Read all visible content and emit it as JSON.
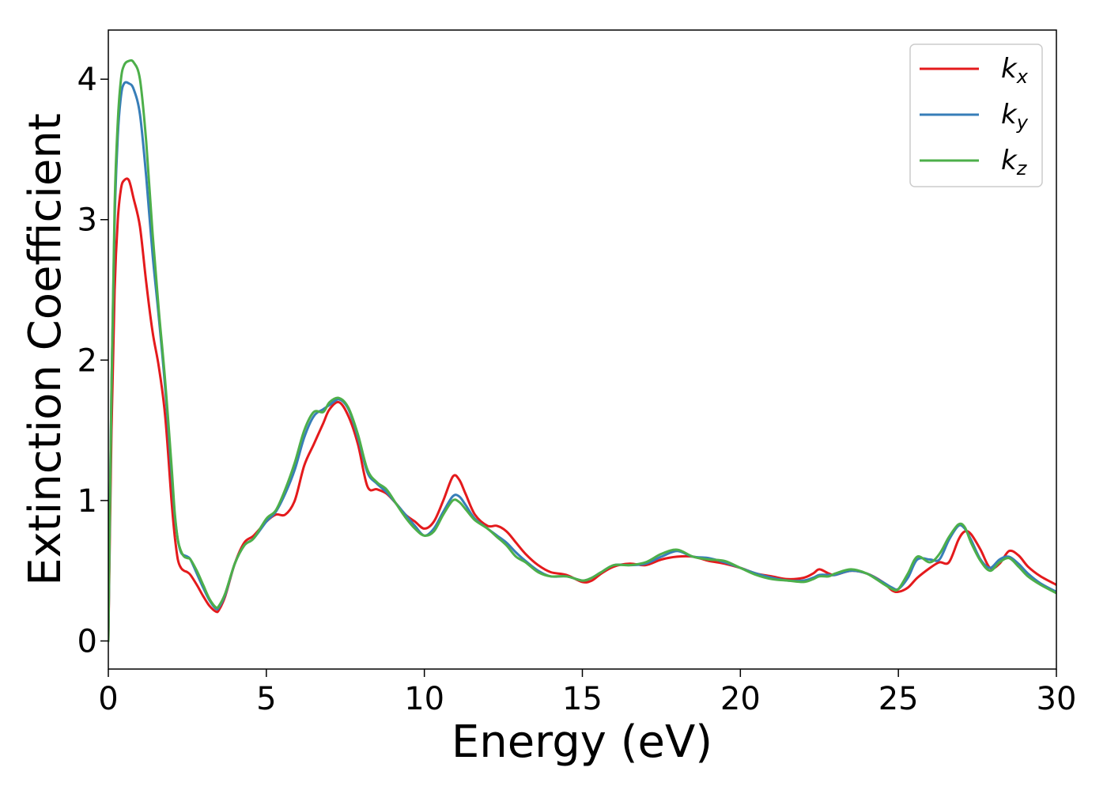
{
  "chart_data": {
    "type": "line",
    "title": "",
    "xlabel": "Energy (eV)",
    "ylabel": "Extinction Coefficient",
    "xlim": [
      0,
      30
    ],
    "ylim": [
      -0.2,
      4.35
    ],
    "xticks": [
      0,
      5,
      10,
      15,
      20,
      25,
      30
    ],
    "yticks": [
      0,
      1,
      2,
      3,
      4
    ],
    "xtick_labels": [
      "0",
      "5",
      "10",
      "15",
      "20",
      "25",
      "30"
    ],
    "ytick_labels": [
      "0",
      "1",
      "2",
      "3",
      "4"
    ],
    "grid": false,
    "legend_position": "top-right",
    "series": [
      {
        "name": "k",
        "subscript": "x",
        "color": "#e41a1c",
        "x": [
          0,
          0.1,
          0.2,
          0.3,
          0.4,
          0.5,
          0.65,
          0.8,
          1.0,
          1.2,
          1.4,
          1.6,
          1.8,
          2.0,
          2.1,
          2.2,
          2.3,
          2.4,
          2.5,
          2.6,
          2.8,
          3.0,
          3.2,
          3.4,
          3.5,
          3.7,
          4.0,
          4.3,
          4.6,
          5.0,
          5.3,
          5.6,
          5.9,
          6.2,
          6.5,
          6.8,
          7.0,
          7.3,
          7.6,
          7.9,
          8.2,
          8.5,
          8.8,
          9.1,
          9.4,
          9.7,
          10.0,
          10.3,
          10.6,
          10.9,
          11.1,
          11.3,
          11.6,
          12.0,
          12.3,
          12.6,
          12.9,
          13.2,
          13.6,
          14.0,
          14.5,
          15.0,
          15.3,
          15.6,
          16.0,
          16.5,
          17.0,
          17.5,
          18.0,
          18.5,
          19.0,
          19.5,
          20.0,
          20.5,
          21.0,
          21.5,
          22.0,
          22.3,
          22.5,
          22.8,
          23.0,
          23.5,
          24.0,
          24.5,
          24.8,
          25.0,
          25.3,
          25.6,
          26.0,
          26.3,
          26.6,
          26.9,
          27.1,
          27.3,
          27.6,
          27.9,
          28.2,
          28.5,
          28.8,
          29.1,
          29.5,
          30.0
        ],
        "y": [
          0,
          1.5,
          2.5,
          3.0,
          3.22,
          3.28,
          3.28,
          3.15,
          2.95,
          2.55,
          2.2,
          1.95,
          1.6,
          1.0,
          0.75,
          0.58,
          0.52,
          0.5,
          0.49,
          0.47,
          0.4,
          0.32,
          0.25,
          0.21,
          0.22,
          0.32,
          0.55,
          0.7,
          0.75,
          0.85,
          0.9,
          0.9,
          1.0,
          1.25,
          1.4,
          1.55,
          1.65,
          1.7,
          1.6,
          1.4,
          1.1,
          1.08,
          1.05,
          0.98,
          0.9,
          0.85,
          0.8,
          0.85,
          1.0,
          1.17,
          1.15,
          1.05,
          0.9,
          0.82,
          0.82,
          0.78,
          0.7,
          0.62,
          0.54,
          0.49,
          0.47,
          0.42,
          0.43,
          0.48,
          0.53,
          0.55,
          0.54,
          0.58,
          0.6,
          0.6,
          0.57,
          0.55,
          0.52,
          0.48,
          0.46,
          0.44,
          0.45,
          0.48,
          0.51,
          0.48,
          0.47,
          0.5,
          0.48,
          0.42,
          0.36,
          0.35,
          0.38,
          0.45,
          0.52,
          0.56,
          0.56,
          0.72,
          0.78,
          0.76,
          0.65,
          0.52,
          0.55,
          0.64,
          0.61,
          0.53,
          0.46,
          0.4
        ]
      },
      {
        "name": "k",
        "subscript": "y",
        "color": "#377eb8",
        "x": [
          0,
          0.1,
          0.2,
          0.3,
          0.4,
          0.5,
          0.65,
          0.8,
          1.0,
          1.2,
          1.4,
          1.6,
          1.8,
          2.0,
          2.1,
          2.2,
          2.3,
          2.4,
          2.5,
          2.6,
          2.8,
          3.0,
          3.2,
          3.4,
          3.5,
          3.7,
          4.0,
          4.3,
          4.6,
          5.0,
          5.3,
          5.6,
          5.9,
          6.2,
          6.5,
          6.8,
          7.0,
          7.3,
          7.6,
          7.9,
          8.2,
          8.5,
          8.8,
          9.1,
          9.4,
          9.7,
          10.0,
          10.3,
          10.6,
          10.9,
          11.1,
          11.3,
          11.6,
          12.0,
          12.3,
          12.6,
          12.9,
          13.2,
          13.6,
          14.0,
          14.5,
          15.0,
          15.3,
          15.6,
          16.0,
          16.5,
          17.0,
          17.5,
          18.0,
          18.5,
          19.0,
          19.5,
          20.0,
          20.5,
          21.0,
          21.5,
          22.0,
          22.3,
          22.5,
          22.8,
          23.0,
          23.5,
          24.0,
          24.5,
          24.8,
          25.0,
          25.3,
          25.6,
          26.0,
          26.3,
          26.6,
          26.9,
          27.1,
          27.3,
          27.6,
          27.9,
          28.2,
          28.5,
          28.8,
          29.1,
          29.5,
          30.0
        ],
        "y": [
          0,
          1.8,
          3.0,
          3.6,
          3.88,
          3.97,
          3.97,
          3.93,
          3.75,
          3.3,
          2.75,
          2.3,
          1.8,
          1.2,
          0.9,
          0.72,
          0.63,
          0.61,
          0.6,
          0.58,
          0.48,
          0.38,
          0.29,
          0.23,
          0.24,
          0.33,
          0.55,
          0.68,
          0.73,
          0.85,
          0.92,
          1.05,
          1.22,
          1.45,
          1.6,
          1.65,
          1.68,
          1.72,
          1.65,
          1.45,
          1.2,
          1.12,
          1.06,
          0.98,
          0.9,
          0.82,
          0.75,
          0.8,
          0.92,
          1.03,
          1.03,
          0.97,
          0.87,
          0.8,
          0.75,
          0.7,
          0.63,
          0.57,
          0.5,
          0.46,
          0.46,
          0.43,
          0.45,
          0.49,
          0.54,
          0.54,
          0.55,
          0.6,
          0.64,
          0.6,
          0.59,
          0.56,
          0.52,
          0.48,
          0.45,
          0.43,
          0.43,
          0.45,
          0.47,
          0.47,
          0.47,
          0.5,
          0.48,
          0.42,
          0.38,
          0.37,
          0.45,
          0.58,
          0.58,
          0.58,
          0.72,
          0.82,
          0.8,
          0.72,
          0.58,
          0.52,
          0.58,
          0.6,
          0.55,
          0.48,
          0.41,
          0.35
        ]
      },
      {
        "name": "k",
        "subscript": "z",
        "color": "#4daf4a",
        "x": [
          0,
          0.1,
          0.2,
          0.3,
          0.4,
          0.5,
          0.65,
          0.8,
          1.0,
          1.2,
          1.4,
          1.6,
          1.8,
          2.0,
          2.1,
          2.2,
          2.3,
          2.4,
          2.5,
          2.6,
          2.8,
          3.0,
          3.2,
          3.4,
          3.5,
          3.7,
          4.0,
          4.3,
          4.6,
          5.0,
          5.3,
          5.6,
          5.9,
          6.2,
          6.5,
          6.8,
          7.0,
          7.3,
          7.6,
          7.9,
          8.2,
          8.5,
          8.8,
          9.1,
          9.4,
          9.7,
          10.0,
          10.3,
          10.6,
          10.9,
          11.1,
          11.3,
          11.6,
          12.0,
          12.3,
          12.6,
          12.9,
          13.2,
          13.6,
          14.0,
          14.5,
          15.0,
          15.3,
          15.6,
          16.0,
          16.5,
          17.0,
          17.5,
          18.0,
          18.5,
          19.0,
          19.5,
          20.0,
          20.5,
          21.0,
          21.5,
          22.0,
          22.3,
          22.5,
          22.8,
          23.0,
          23.5,
          24.0,
          24.5,
          24.8,
          25.0,
          25.3,
          25.6,
          26.0,
          26.3,
          26.6,
          26.9,
          27.1,
          27.3,
          27.6,
          27.9,
          28.2,
          28.5,
          28.8,
          29.1,
          29.5,
          30.0
        ],
        "y": [
          0,
          1.8,
          3.1,
          3.7,
          4.0,
          4.1,
          4.13,
          4.12,
          4.0,
          3.55,
          2.9,
          2.35,
          1.85,
          1.25,
          0.92,
          0.72,
          0.64,
          0.6,
          0.59,
          0.58,
          0.5,
          0.4,
          0.3,
          0.24,
          0.25,
          0.34,
          0.55,
          0.68,
          0.73,
          0.87,
          0.93,
          1.08,
          1.27,
          1.5,
          1.63,
          1.63,
          1.7,
          1.73,
          1.66,
          1.47,
          1.22,
          1.13,
          1.08,
          0.98,
          0.88,
          0.8,
          0.75,
          0.78,
          0.9,
          1.0,
          0.99,
          0.94,
          0.86,
          0.8,
          0.74,
          0.68,
          0.6,
          0.56,
          0.49,
          0.46,
          0.46,
          0.43,
          0.45,
          0.49,
          0.54,
          0.54,
          0.56,
          0.62,
          0.65,
          0.6,
          0.58,
          0.57,
          0.52,
          0.47,
          0.44,
          0.43,
          0.42,
          0.44,
          0.46,
          0.46,
          0.48,
          0.51,
          0.48,
          0.41,
          0.37,
          0.37,
          0.48,
          0.6,
          0.56,
          0.62,
          0.74,
          0.83,
          0.81,
          0.7,
          0.57,
          0.5,
          0.56,
          0.59,
          0.53,
          0.46,
          0.4,
          0.34
        ]
      }
    ]
  }
}
